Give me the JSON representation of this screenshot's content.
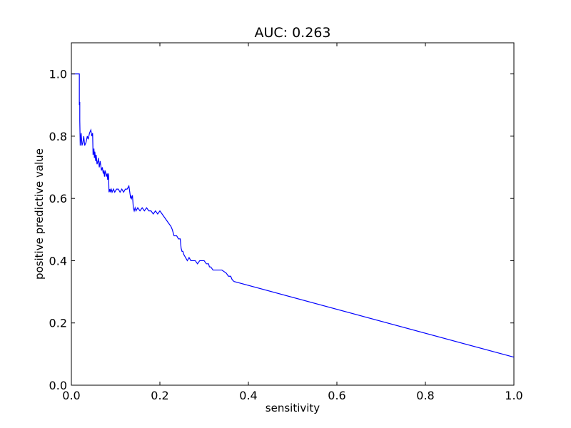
{
  "chart_data": {
    "type": "line",
    "title": "AUC: 0.263",
    "xlabel": "sensitivity",
    "ylabel": "positive predictive value",
    "xlim": [
      0.0,
      1.0
    ],
    "ylim": [
      0.0,
      1.1
    ],
    "grid": false,
    "x_ticks": [
      {
        "value": 0.0,
        "label": "0.0"
      },
      {
        "value": 0.2,
        "label": "0.2"
      },
      {
        "value": 0.4,
        "label": "0.4"
      },
      {
        "value": 0.6,
        "label": "0.6"
      },
      {
        "value": 0.8,
        "label": "0.8"
      },
      {
        "value": 1.0,
        "label": "1.0"
      }
    ],
    "y_ticks": [
      {
        "value": 0.0,
        "label": "0.0"
      },
      {
        "value": 0.2,
        "label": "0.2"
      },
      {
        "value": 0.4,
        "label": "0.4"
      },
      {
        "value": 0.6,
        "label": "0.6"
      },
      {
        "value": 0.8,
        "label": "0.8"
      },
      {
        "value": 1.0,
        "label": "1.0"
      }
    ],
    "series": [
      {
        "color": "#0000ff",
        "x": [
          0.0,
          0.018,
          0.018,
          0.019,
          0.019,
          0.02,
          0.021,
          0.022,
          0.024,
          0.026,
          0.028,
          0.03,
          0.033,
          0.036,
          0.038,
          0.041,
          0.044,
          0.046,
          0.048,
          0.049,
          0.051,
          0.052,
          0.053,
          0.055,
          0.056,
          0.058,
          0.06,
          0.061,
          0.063,
          0.065,
          0.066,
          0.068,
          0.07,
          0.072,
          0.073,
          0.075,
          0.076,
          0.078,
          0.079,
          0.081,
          0.082,
          0.084,
          0.085,
          0.087,
          0.088,
          0.09,
          0.092,
          0.095,
          0.098,
          0.102,
          0.106,
          0.11,
          0.114,
          0.118,
          0.122,
          0.126,
          0.13,
          0.134,
          0.134,
          0.136,
          0.138,
          0.14,
          0.142,
          0.144,
          0.146,
          0.15,
          0.155,
          0.16,
          0.165,
          0.17,
          0.175,
          0.18,
          0.185,
          0.19,
          0.195,
          0.2,
          0.205,
          0.21,
          0.215,
          0.22,
          0.225,
          0.228,
          0.23,
          0.232,
          0.235,
          0.238,
          0.242,
          0.246,
          0.248,
          0.25,
          0.252,
          0.254,
          0.258,
          0.262,
          0.266,
          0.27,
          0.275,
          0.28,
          0.285,
          0.29,
          0.295,
          0.3,
          0.305,
          0.31,
          0.312,
          0.315,
          0.32,
          0.33,
          0.34,
          0.35,
          0.355,
          0.36,
          0.363,
          0.366,
          0.368,
          1.0
        ],
        "y": [
          1.0,
          1.0,
          0.9,
          0.91,
          0.85,
          0.77,
          0.79,
          0.81,
          0.77,
          0.78,
          0.8,
          0.77,
          0.78,
          0.8,
          0.79,
          0.81,
          0.82,
          0.8,
          0.81,
          0.74,
          0.76,
          0.73,
          0.75,
          0.72,
          0.74,
          0.71,
          0.72,
          0.73,
          0.7,
          0.72,
          0.71,
          0.69,
          0.7,
          0.68,
          0.69,
          0.67,
          0.69,
          0.68,
          0.67,
          0.68,
          0.66,
          0.68,
          0.62,
          0.63,
          0.62,
          0.63,
          0.62,
          0.63,
          0.62,
          0.63,
          0.63,
          0.62,
          0.63,
          0.62,
          0.63,
          0.63,
          0.64,
          0.6,
          0.61,
          0.6,
          0.61,
          0.57,
          0.56,
          0.57,
          0.56,
          0.57,
          0.56,
          0.57,
          0.56,
          0.57,
          0.56,
          0.56,
          0.55,
          0.56,
          0.55,
          0.56,
          0.55,
          0.54,
          0.53,
          0.52,
          0.51,
          0.5,
          0.49,
          0.48,
          0.48,
          0.48,
          0.47,
          0.47,
          0.44,
          0.43,
          0.43,
          0.42,
          0.41,
          0.4,
          0.41,
          0.4,
          0.4,
          0.4,
          0.39,
          0.4,
          0.4,
          0.4,
          0.39,
          0.39,
          0.38,
          0.38,
          0.37,
          0.37,
          0.37,
          0.36,
          0.35,
          0.35,
          0.34,
          0.335,
          0.333,
          0.09
        ]
      }
    ]
  }
}
